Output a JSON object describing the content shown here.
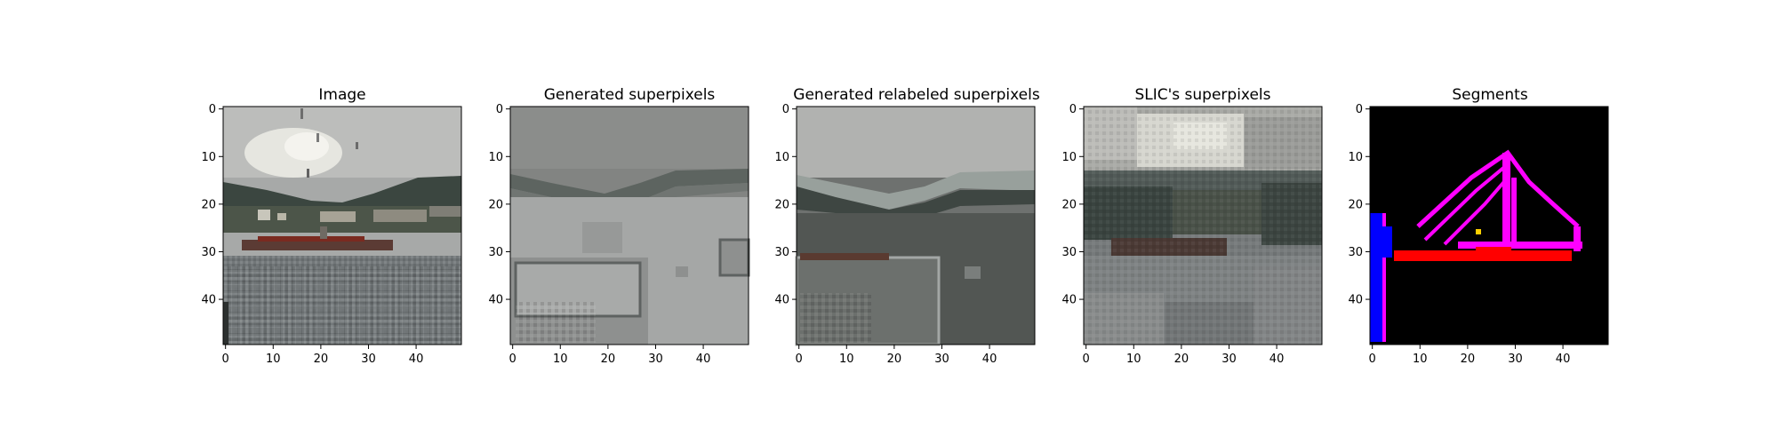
{
  "figure": {
    "panels": [
      {
        "id": "image",
        "title": "Image"
      },
      {
        "id": "generated",
        "title": "Generated superpixels"
      },
      {
        "id": "relabeled",
        "title": "Generated relabeled superpixels"
      },
      {
        "id": "slic",
        "title": "SLIC's superpixels"
      },
      {
        "id": "segments",
        "title": "Segments"
      }
    ],
    "axes": {
      "x_ticks": [
        "0",
        "10",
        "20",
        "30",
        "40"
      ],
      "y_ticks": [
        "0",
        "10",
        "20",
        "30",
        "40"
      ],
      "x_range": [
        0,
        49
      ],
      "y_range": [
        0,
        49
      ]
    },
    "colors": {
      "sky": "#c9cac8",
      "sky_bright": "#ebeae3",
      "hills": "#3f4a45",
      "water": "#7a7e80",
      "boat": "#7a2a20",
      "background_black": "#000000",
      "segment_magenta": "#ff00ff",
      "segment_red": "#ff0000",
      "segment_blue": "#0000ff"
    }
  }
}
